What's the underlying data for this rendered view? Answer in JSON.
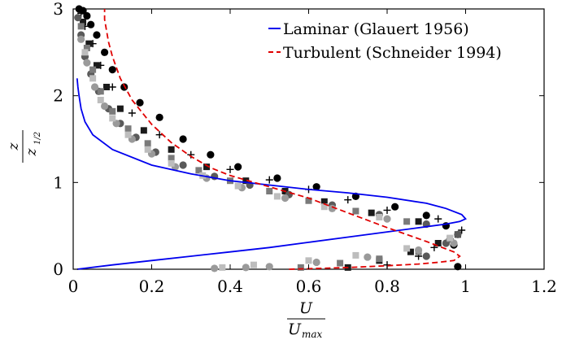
{
  "chart_data": {
    "type": "scatter",
    "xlim": [
      0,
      1.2
    ],
    "ylim": [
      0,
      3
    ],
    "x_ticks": [
      0,
      0.2,
      0.4,
      0.6,
      0.8,
      1,
      1.2
    ],
    "x_tick_labels": [
      "0",
      "0.2",
      "0.4",
      "0.6",
      "0.8",
      "1",
      "1.2"
    ],
    "y_ticks": [
      0,
      1,
      2,
      3
    ],
    "y_tick_labels": [
      "0",
      "1",
      "2",
      "3"
    ],
    "xlabel": {
      "numerator": "U",
      "denominator": "U",
      "denominator_sub": "max"
    },
    "ylabel": {
      "numerator": "z",
      "denominator": "z",
      "denominator_sub": "1/2"
    },
    "grid": false,
    "legend_position": "top-right",
    "legend": [
      {
        "label": "Laminar (Glauert 1956)",
        "color": "#0000ee",
        "style": "solid"
      },
      {
        "label": "Turbulent (Schneider 1994)",
        "color": "#e00000",
        "style": "dashed"
      }
    ],
    "lines": [
      {
        "name": "Laminar (Glauert 1956)",
        "color": "#0000ee",
        "dash": false,
        "x": [
          0.01,
          0.1,
          0.2,
          0.3,
          0.4,
          0.5,
          0.6,
          0.7,
          0.8,
          0.9,
          0.95,
          0.985,
          1.0,
          0.99,
          0.95,
          0.9,
          0.8,
          0.7,
          0.6,
          0.5,
          0.4,
          0.3,
          0.2,
          0.1,
          0.05,
          0.03,
          0.02,
          0.015,
          0.012,
          0.01
        ],
        "y": [
          0.0,
          0.05,
          0.1,
          0.15,
          0.2,
          0.25,
          0.31,
          0.37,
          0.43,
          0.49,
          0.52,
          0.55,
          0.58,
          0.63,
          0.7,
          0.76,
          0.83,
          0.88,
          0.92,
          0.97,
          1.02,
          1.1,
          1.2,
          1.38,
          1.55,
          1.7,
          1.85,
          2.0,
          2.1,
          2.2
        ]
      },
      {
        "name": "Turbulent (Schneider 1994)",
        "color": "#e00000",
        "dash": true,
        "x": [
          0.55,
          0.7,
          0.8,
          0.88,
          0.93,
          0.97,
          0.985,
          0.97,
          0.9,
          0.8,
          0.7,
          0.6,
          0.5,
          0.4,
          0.35,
          0.3,
          0.25,
          0.2,
          0.15,
          0.12,
          0.1,
          0.09,
          0.085,
          0.08,
          0.08
        ],
        "y": [
          0.0,
          0.02,
          0.04,
          0.06,
          0.08,
          0.1,
          0.15,
          0.2,
          0.32,
          0.48,
          0.65,
          0.82,
          0.95,
          1.08,
          1.17,
          1.3,
          1.46,
          1.67,
          1.95,
          2.2,
          2.45,
          2.62,
          2.75,
          2.88,
          3.0
        ]
      }
    ],
    "scatter_series": [
      {
        "marker": "circle",
        "color": "#000000",
        "x": [
          0.98,
          0.97,
          0.95,
          0.9,
          0.82,
          0.72,
          0.62,
          0.52,
          0.42,
          0.35,
          0.28,
          0.22,
          0.17,
          0.13,
          0.1,
          0.08,
          0.06,
          0.045,
          0.035,
          0.025,
          0.015
        ],
        "y": [
          0.03,
          0.28,
          0.5,
          0.62,
          0.72,
          0.84,
          0.95,
          1.05,
          1.18,
          1.32,
          1.5,
          1.75,
          1.92,
          2.1,
          2.3,
          2.5,
          2.7,
          2.82,
          2.92,
          2.98,
          3.0
        ]
      },
      {
        "marker": "plus",
        "color": "#000000",
        "x": [
          0.8,
          0.88,
          0.92,
          0.96,
          0.99,
          0.93,
          0.8,
          0.7,
          0.6,
          0.5,
          0.4,
          0.3,
          0.22,
          0.15,
          0.1,
          0.07,
          0.05,
          0.03,
          0.02
        ],
        "y": [
          0.05,
          0.15,
          0.25,
          0.35,
          0.45,
          0.58,
          0.68,
          0.8,
          0.92,
          1.03,
          1.15,
          1.32,
          1.55,
          1.8,
          2.1,
          2.35,
          2.6,
          2.8,
          2.95
        ]
      },
      {
        "marker": "square",
        "color": "#1a1a1a",
        "x": [
          0.7,
          0.78,
          0.86,
          0.93,
          0.98,
          0.88,
          0.76,
          0.64,
          0.54,
          0.44,
          0.34,
          0.25,
          0.18,
          0.12,
          0.085,
          0.06,
          0.04,
          0.025
        ],
        "y": [
          0.02,
          0.1,
          0.2,
          0.3,
          0.4,
          0.55,
          0.65,
          0.78,
          0.9,
          1.02,
          1.18,
          1.38,
          1.6,
          1.85,
          2.1,
          2.35,
          2.6,
          2.85
        ]
      },
      {
        "marker": "circle",
        "color": "#5a5a5a",
        "x": [
          0.9,
          0.95,
          0.98,
          0.9,
          0.78,
          0.66,
          0.55,
          0.45,
          0.36,
          0.28,
          0.21,
          0.16,
          0.12,
          0.09,
          0.065,
          0.045,
          0.03,
          0.02,
          0.012
        ],
        "y": [
          0.15,
          0.3,
          0.4,
          0.52,
          0.63,
          0.74,
          0.86,
          0.97,
          1.07,
          1.2,
          1.35,
          1.52,
          1.68,
          1.85,
          2.05,
          2.25,
          2.45,
          2.7,
          2.9
        ]
      },
      {
        "marker": "square",
        "color": "#7a7a7a",
        "x": [
          0.58,
          0.68,
          0.78,
          0.88,
          0.96,
          0.85,
          0.72,
          0.6,
          0.5,
          0.4,
          0.32,
          0.25,
          0.19,
          0.14,
          0.1,
          0.07,
          0.05,
          0.035,
          0.02
        ],
        "y": [
          0.02,
          0.07,
          0.12,
          0.2,
          0.35,
          0.55,
          0.67,
          0.79,
          0.9,
          1.02,
          1.14,
          1.28,
          1.45,
          1.62,
          1.82,
          2.05,
          2.3,
          2.55,
          2.8
        ]
      },
      {
        "marker": "circle",
        "color": "#9a9a9a",
        "x": [
          0.36,
          0.44,
          0.5,
          0.62,
          0.75,
          0.88,
          0.97,
          0.8,
          0.66,
          0.54,
          0.43,
          0.34,
          0.26,
          0.2,
          0.15,
          0.11,
          0.08,
          0.055,
          0.035,
          0.02
        ],
        "y": [
          0.01,
          0.02,
          0.03,
          0.08,
          0.14,
          0.22,
          0.3,
          0.58,
          0.7,
          0.82,
          0.94,
          1.05,
          1.18,
          1.33,
          1.5,
          1.68,
          1.88,
          2.1,
          2.38,
          2.65
        ]
      },
      {
        "marker": "square",
        "color": "#bdbdbd",
        "x": [
          0.38,
          0.46,
          0.6,
          0.72,
          0.85,
          0.96,
          0.78,
          0.64,
          0.52,
          0.42,
          0.33,
          0.25,
          0.19,
          0.14,
          0.1,
          0.07,
          0.05,
          0.03
        ],
        "y": [
          0.02,
          0.05,
          0.1,
          0.16,
          0.24,
          0.36,
          0.6,
          0.72,
          0.84,
          0.96,
          1.08,
          1.22,
          1.38,
          1.55,
          1.74,
          1.95,
          2.2,
          2.5
        ]
      }
    ]
  }
}
